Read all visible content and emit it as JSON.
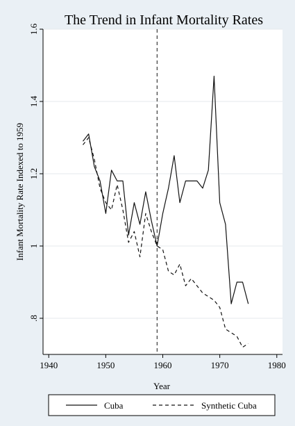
{
  "chart_data": {
    "type": "line",
    "title": "The Trend in Infant Mortality Rates",
    "xlabel": "Year",
    "ylabel": "Infant Mortality Rate Indexed to 1959",
    "xlim": [
      1939,
      1981
    ],
    "ylim": [
      0.7,
      1.6
    ],
    "xticks": [
      1940,
      1950,
      1960,
      1970,
      1980
    ],
    "yticks": [
      0.8,
      1.0,
      1.2,
      1.4,
      1.6
    ],
    "ytick_labels": [
      ".8",
      "1",
      "1.2",
      "1.4",
      "1.6"
    ],
    "grid": true,
    "vline": {
      "x": 1959,
      "style": "dashed"
    },
    "legend_position": "bottom",
    "series": [
      {
        "name": "Cuba",
        "style": "solid",
        "x": [
          1946,
          1947,
          1948,
          1949,
          1950,
          1951,
          1952,
          1953,
          1954,
          1955,
          1956,
          1957,
          1958,
          1959,
          1960,
          1961,
          1962,
          1963,
          1964,
          1965,
          1966,
          1967,
          1968,
          1969,
          1970,
          1971,
          1972,
          1973,
          1974,
          1975
        ],
        "y": [
          1.29,
          1.31,
          1.22,
          1.18,
          1.09,
          1.21,
          1.18,
          1.18,
          1.03,
          1.12,
          1.06,
          1.15,
          1.07,
          1.0,
          1.09,
          1.16,
          1.25,
          1.12,
          1.18,
          1.18,
          1.18,
          1.16,
          1.21,
          1.47,
          1.12,
          1.06,
          0.84,
          0.9,
          0.9,
          0.84
        ]
      },
      {
        "name": "Synthetic Cuba",
        "style": "dashed",
        "x": [
          1946,
          1947,
          1948,
          1949,
          1950,
          1951,
          1952,
          1953,
          1954,
          1955,
          1956,
          1957,
          1958,
          1959,
          1960,
          1961,
          1962,
          1963,
          1964,
          1965,
          1966,
          1967,
          1968,
          1969,
          1970,
          1971,
          1972,
          1973,
          1974,
          1975
        ],
        "y": [
          1.28,
          1.3,
          1.24,
          1.16,
          1.12,
          1.1,
          1.17,
          1.1,
          1.01,
          1.04,
          0.97,
          1.09,
          1.04,
          1.0,
          0.99,
          0.93,
          0.92,
          0.95,
          0.89,
          0.91,
          0.89,
          0.87,
          0.86,
          0.85,
          0.83,
          0.77,
          0.76,
          0.75,
          0.72,
          0.73
        ]
      }
    ]
  }
}
